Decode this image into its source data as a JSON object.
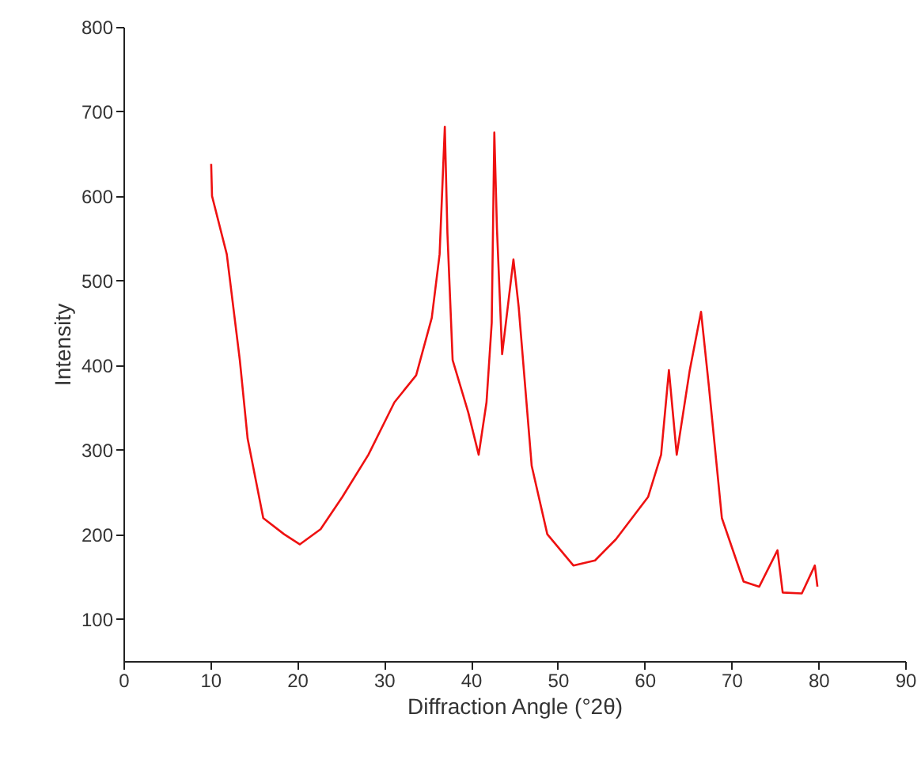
{
  "chart_data": {
    "type": "line",
    "xlabel": "Diffraction Angle (°2θ)",
    "ylabel": "Intensity",
    "xlim": [
      0,
      90
    ],
    "xticks": [
      0,
      10,
      20,
      30,
      40,
      50,
      60,
      70,
      80,
      90
    ],
    "ylim": [
      50,
      800
    ],
    "yticks": [
      100,
      200,
      300,
      400,
      500,
      600,
      700,
      800
    ],
    "grid": false,
    "marker": "none",
    "line_style": "solid",
    "series": [
      {
        "color": "#ee1111",
        "x": [
          10.1,
          10.2,
          11.9,
          13.4,
          14.3,
          16.1,
          18.5,
          20.3,
          22.7,
          25.2,
          28.2,
          31.2,
          33.7,
          35.5,
          36.4,
          37.0,
          37.3,
          37.9,
          39.7,
          40.9,
          41.8,
          42.4,
          42.7,
          43.0,
          43.6,
          44.9,
          45.5,
          47.0,
          48.8,
          51.8,
          54.3,
          56.7,
          60.4,
          61.9,
          62.8,
          63.7,
          65.2,
          66.5,
          67.4,
          68.9,
          71.4,
          73.2,
          75.3,
          75.9,
          78.1,
          79.6,
          79.9
        ],
        "values": [
          638,
          600,
          531,
          406,
          313,
          219,
          200,
          188,
          206,
          244,
          294,
          356,
          388,
          456,
          531,
          682,
          556,
          406,
          344,
          294,
          356,
          450,
          675,
          562,
          413,
          525,
          469,
          281,
          200,
          163,
          169,
          194,
          244,
          294,
          394,
          294,
          394,
          463,
          375,
          219,
          144,
          138,
          181,
          131,
          130,
          163,
          138
        ]
      }
    ]
  }
}
